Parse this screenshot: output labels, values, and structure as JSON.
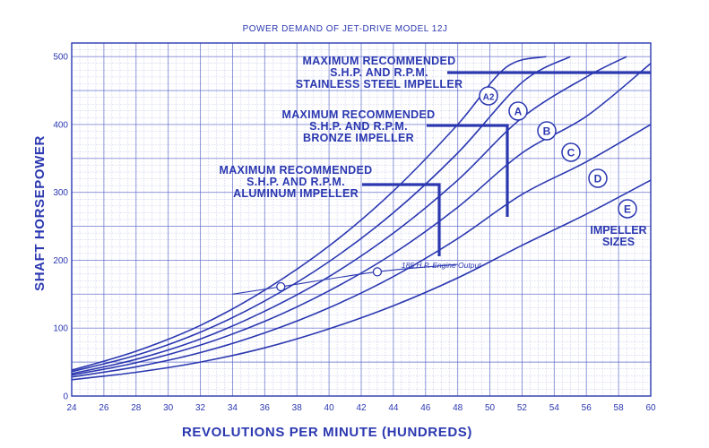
{
  "chart_data": {
    "type": "line",
    "title": "POWER DEMAND OF JET-DRIVE MODEL 12J",
    "xlabel": "REVOLUTIONS PER MINUTE (HUNDREDS)",
    "ylabel": "SHAFT HORSEPOWER",
    "xlim": [
      24,
      60
    ],
    "ylim": [
      0,
      520
    ],
    "xticks": [
      24,
      26,
      28,
      30,
      32,
      34,
      36,
      38,
      40,
      42,
      44,
      46,
      48,
      50,
      52,
      54,
      56,
      58,
      60
    ],
    "xtick_labels": [
      "24",
      "26",
      "28",
      "30",
      "32",
      "34",
      "36",
      "38",
      "40",
      "42",
      "44",
      "46",
      "48",
      "50",
      "52",
      "54",
      "56",
      "58",
      "60"
    ],
    "yticks": [
      0,
      100,
      200,
      300,
      400,
      500
    ],
    "ytick_labels": [
      "0",
      "100",
      "200",
      "300",
      "400",
      "500"
    ],
    "grid": true,
    "series": [
      {
        "name": "A2",
        "x": [
          24,
          28,
          32,
          36,
          40,
          44,
          48,
          51,
          53.5
        ],
        "y": [
          38,
          66,
          104,
          156,
          221,
          302,
          400,
          484,
          500
        ]
      },
      {
        "name": "A",
        "x": [
          24,
          28,
          32,
          36,
          40,
          44,
          48,
          52,
          55
        ],
        "y": [
          36,
          60,
          94,
          140,
          198,
          270,
          358,
          462,
          500
        ]
      },
      {
        "name": "B",
        "x": [
          24,
          28,
          32,
          36,
          40,
          44,
          48,
          52,
          56,
          58.5
        ],
        "y": [
          33,
          54,
          84,
          125,
          176,
          240,
          318,
          410,
          470,
          500
        ]
      },
      {
        "name": "C",
        "x": [
          24,
          28,
          32,
          36,
          40,
          44,
          48,
          52,
          56,
          60
        ],
        "y": [
          31,
          49,
          75,
          110,
          155,
          210,
          278,
          358,
          412,
          490
        ]
      },
      {
        "name": "D",
        "x": [
          24,
          28,
          32,
          36,
          40,
          44,
          48,
          52,
          56,
          60
        ],
        "y": [
          28,
          43,
          64,
          93,
          130,
          176,
          232,
          297,
          345,
          400
        ]
      },
      {
        "name": "E",
        "x": [
          24,
          28,
          32,
          36,
          40,
          44,
          48,
          52,
          56,
          60
        ],
        "y": [
          24,
          35,
          50,
          71,
          99,
          133,
          174,
          222,
          268,
          318
        ]
      }
    ],
    "engine_output": {
      "label": "185 H.P. Engine Output",
      "x": [
        34,
        37,
        43,
        48
      ],
      "y": [
        150,
        161,
        183,
        194
      ],
      "markers_x": [
        37,
        43
      ]
    },
    "annotations": [
      {
        "lines": [
          "MAXIMUM RECOMMENDED",
          "S.H.P. AND R.P.M.",
          "STAINLESS STEEL IMPELLER"
        ],
        "shp": 500,
        "rpm": 60
      },
      {
        "lines": [
          "MAXIMUM RECOMMENDED",
          "S.H.P. AND R.P.M.",
          "BRONZE IMPELLER"
        ],
        "shp": 420,
        "rpm": 51
      },
      {
        "lines": [
          "MAXIMUM RECOMMENDED",
          "S.H.P. AND R.P.M.",
          "ALUMINUM IMPELLER"
        ],
        "shp": 330,
        "rpm": 46.5
      }
    ],
    "impeller_sizes_label": [
      "IMPELLER",
      "SIZES"
    ],
    "impeller_size_labels": [
      "A2",
      "A",
      "B",
      "C",
      "D",
      "E"
    ],
    "colors": {
      "ink": "#2b38b0",
      "grid": "#5a66c8",
      "background": "#ffffff"
    }
  }
}
